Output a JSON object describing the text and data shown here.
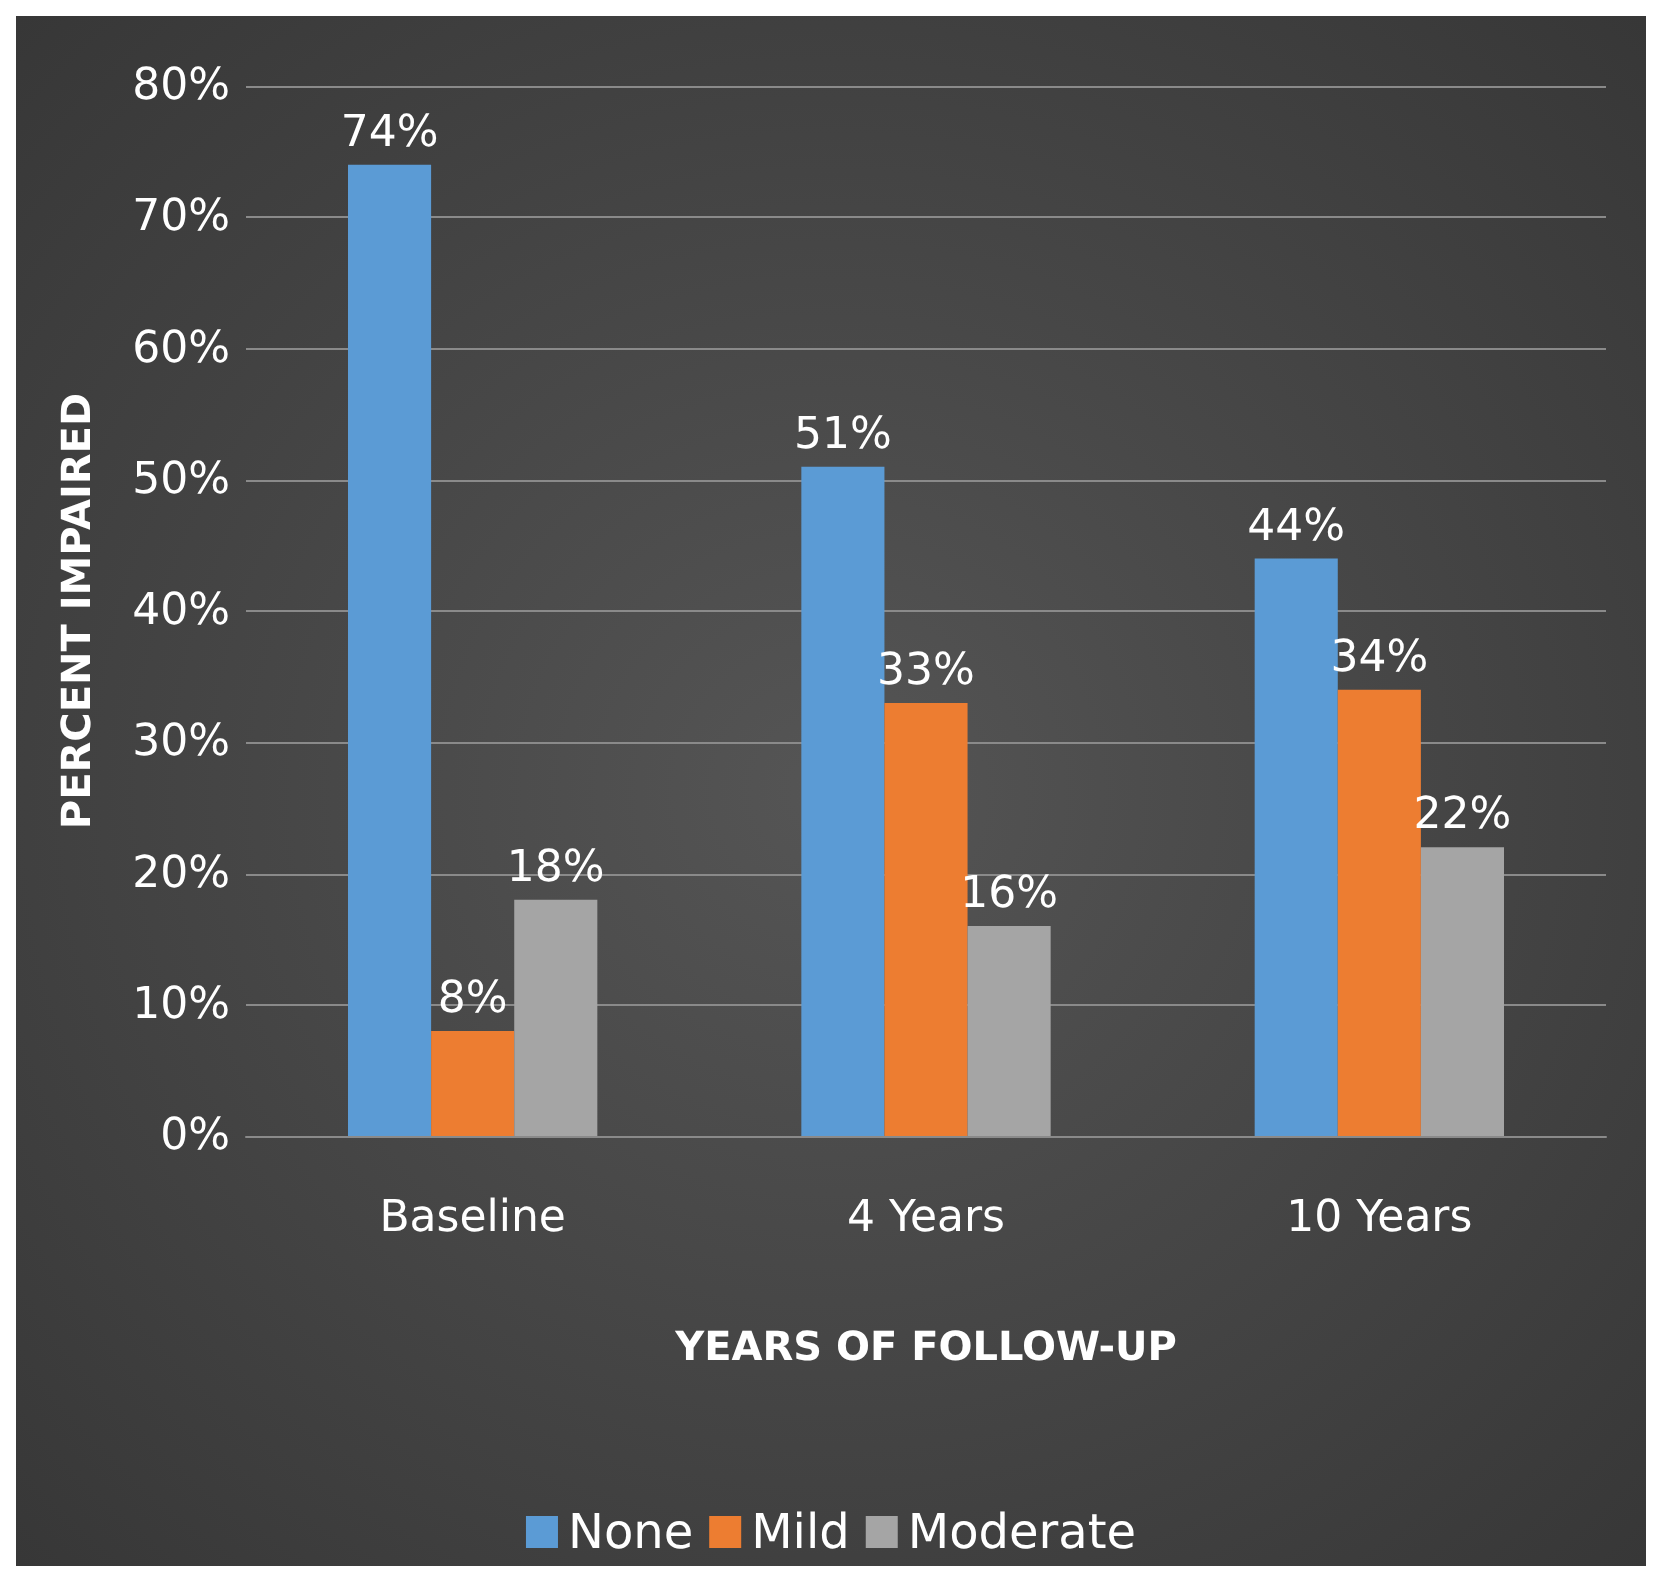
{
  "chart_data": {
    "type": "bar",
    "xlabel": "YEARS OF FOLLOW-UP",
    "ylabel": "PERCENT IMPAIRED",
    "categories": [
      "Baseline",
      "4 Years",
      "10 Years"
    ],
    "series": [
      {
        "name": "None",
        "color": "#5b9bd5",
        "values": [
          74,
          51,
          44
        ],
        "value_labels": [
          "74%",
          "51%",
          "44%"
        ]
      },
      {
        "name": "Mild",
        "color": "#ed7d31",
        "values": [
          8,
          33,
          34
        ],
        "value_labels": [
          "8%",
          "33%",
          "34%"
        ]
      },
      {
        "name": "Moderate",
        "color": "#a5a5a5",
        "values": [
          18,
          16,
          22
        ],
        "value_labels": [
          "18%",
          "16%",
          "22%"
        ]
      }
    ],
    "ylim": [
      0,
      80
    ],
    "yticks": [
      {
        "value": 0,
        "label": "0%"
      },
      {
        "value": 10,
        "label": "10%"
      },
      {
        "value": 20,
        "label": "20%"
      },
      {
        "value": 30,
        "label": "30%"
      },
      {
        "value": 40,
        "label": "40%"
      },
      {
        "value": 50,
        "label": "50%"
      },
      {
        "value": 60,
        "label": "60%"
      },
      {
        "value": 70,
        "label": "70%"
      },
      {
        "value": 80,
        "label": "80%"
      }
    ],
    "grid": true,
    "legend": "bottom"
  }
}
